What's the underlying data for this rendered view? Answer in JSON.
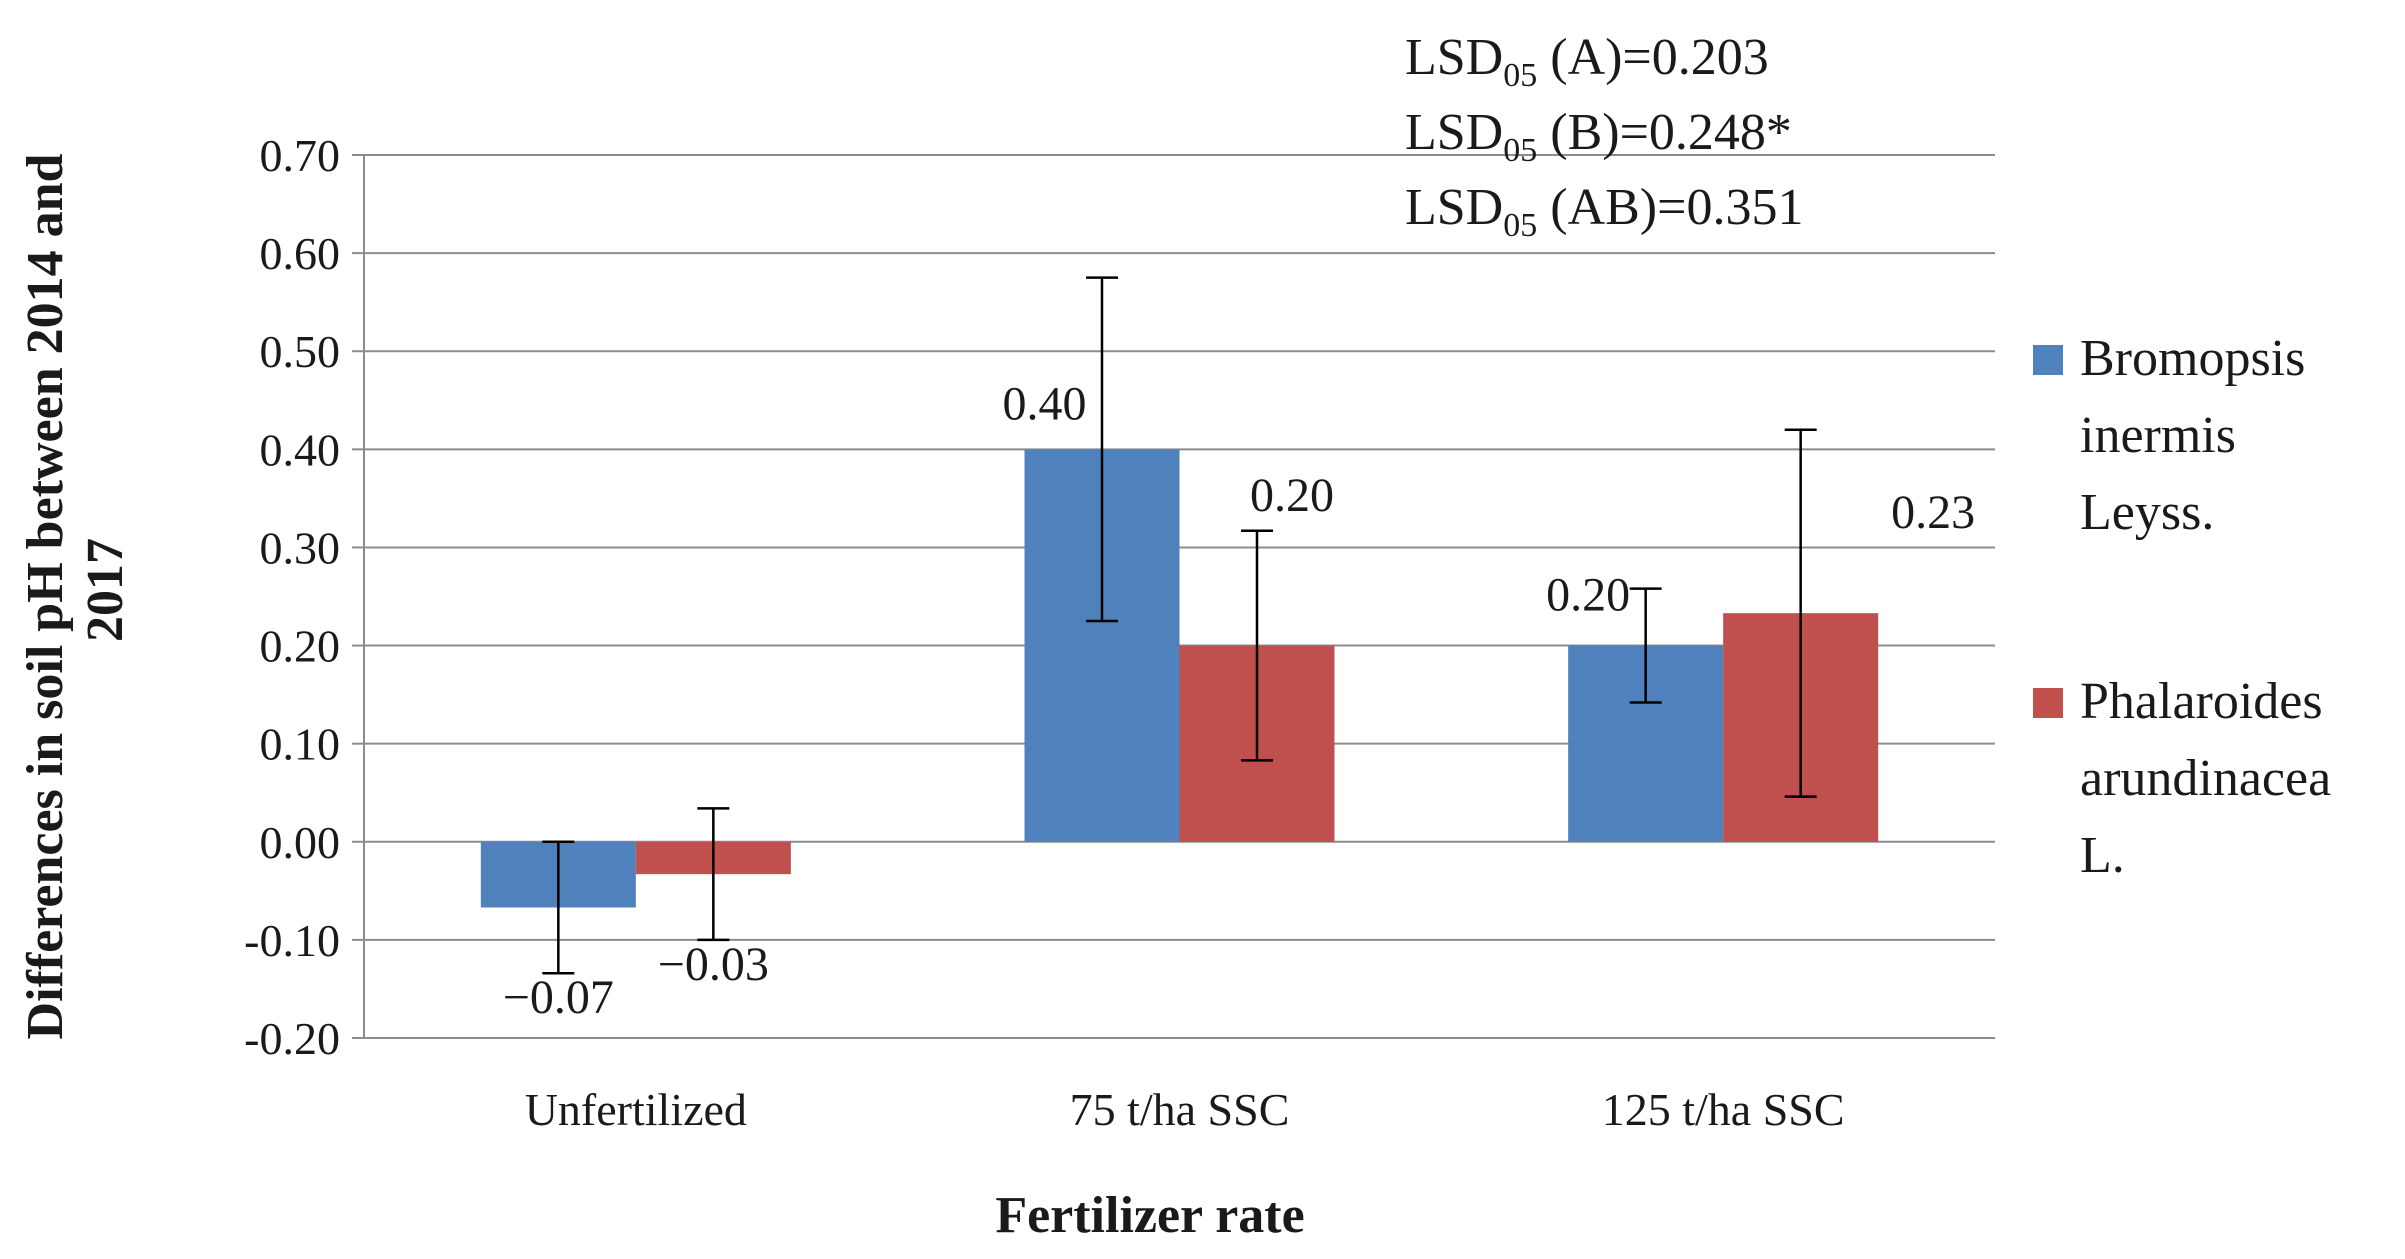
{
  "chart_data": {
    "type": "bar",
    "title": "",
    "xlabel": "Fertilizer rate",
    "ylabel": "Differences in soil pH between 2014 and 2017",
    "ylim": [
      -0.2,
      0.7
    ],
    "y_ticks": [
      "0.70",
      "0.60",
      "0.50",
      "0.40",
      "0.30",
      "0.20",
      "0.10",
      "0.00",
      "-0.10",
      "-0.20"
    ],
    "y_tick_values": [
      0.7,
      0.6,
      0.5,
      0.4,
      0.3,
      0.2,
      0.1,
      0.0,
      -0.1,
      -0.2
    ],
    "grid": true,
    "legend_position": "right",
    "categories": [
      "Unfertilized",
      "75 t/ha SSC",
      "125 t/ha SSC"
    ],
    "series": [
      {
        "name": "Bromopsis inermis Leyss.",
        "legend_lines": [
          "Bromopsis",
          "inermis",
          "Leyss."
        ],
        "color": "#4f81bd",
        "values": [
          -0.067,
          0.4,
          0.2
        ],
        "error": [
          0.067,
          0.175,
          0.058
        ],
        "labels": [
          "−0.07",
          "0.40",
          "0.20"
        ]
      },
      {
        "name": "Phalaroides arundinacea L.",
        "legend_lines": [
          "Phalaroides",
          "arundinacea",
          "L."
        ],
        "color": "#c0504d",
        "values": [
          -0.033,
          0.2,
          0.233
        ],
        "error": [
          0.067,
          0.117,
          0.187
        ],
        "labels": [
          "−0.03",
          "0.20",
          "0.23"
        ]
      }
    ],
    "annotations": [
      {
        "prefix": "LSD",
        "sub": "05",
        "suffix": " (A)=0.203"
      },
      {
        "prefix": "LSD",
        "sub": "05",
        "suffix": " (B)=0.248*"
      },
      {
        "prefix": "LSD",
        "sub": "05",
        "suffix": " (AB)=0.351"
      }
    ]
  }
}
